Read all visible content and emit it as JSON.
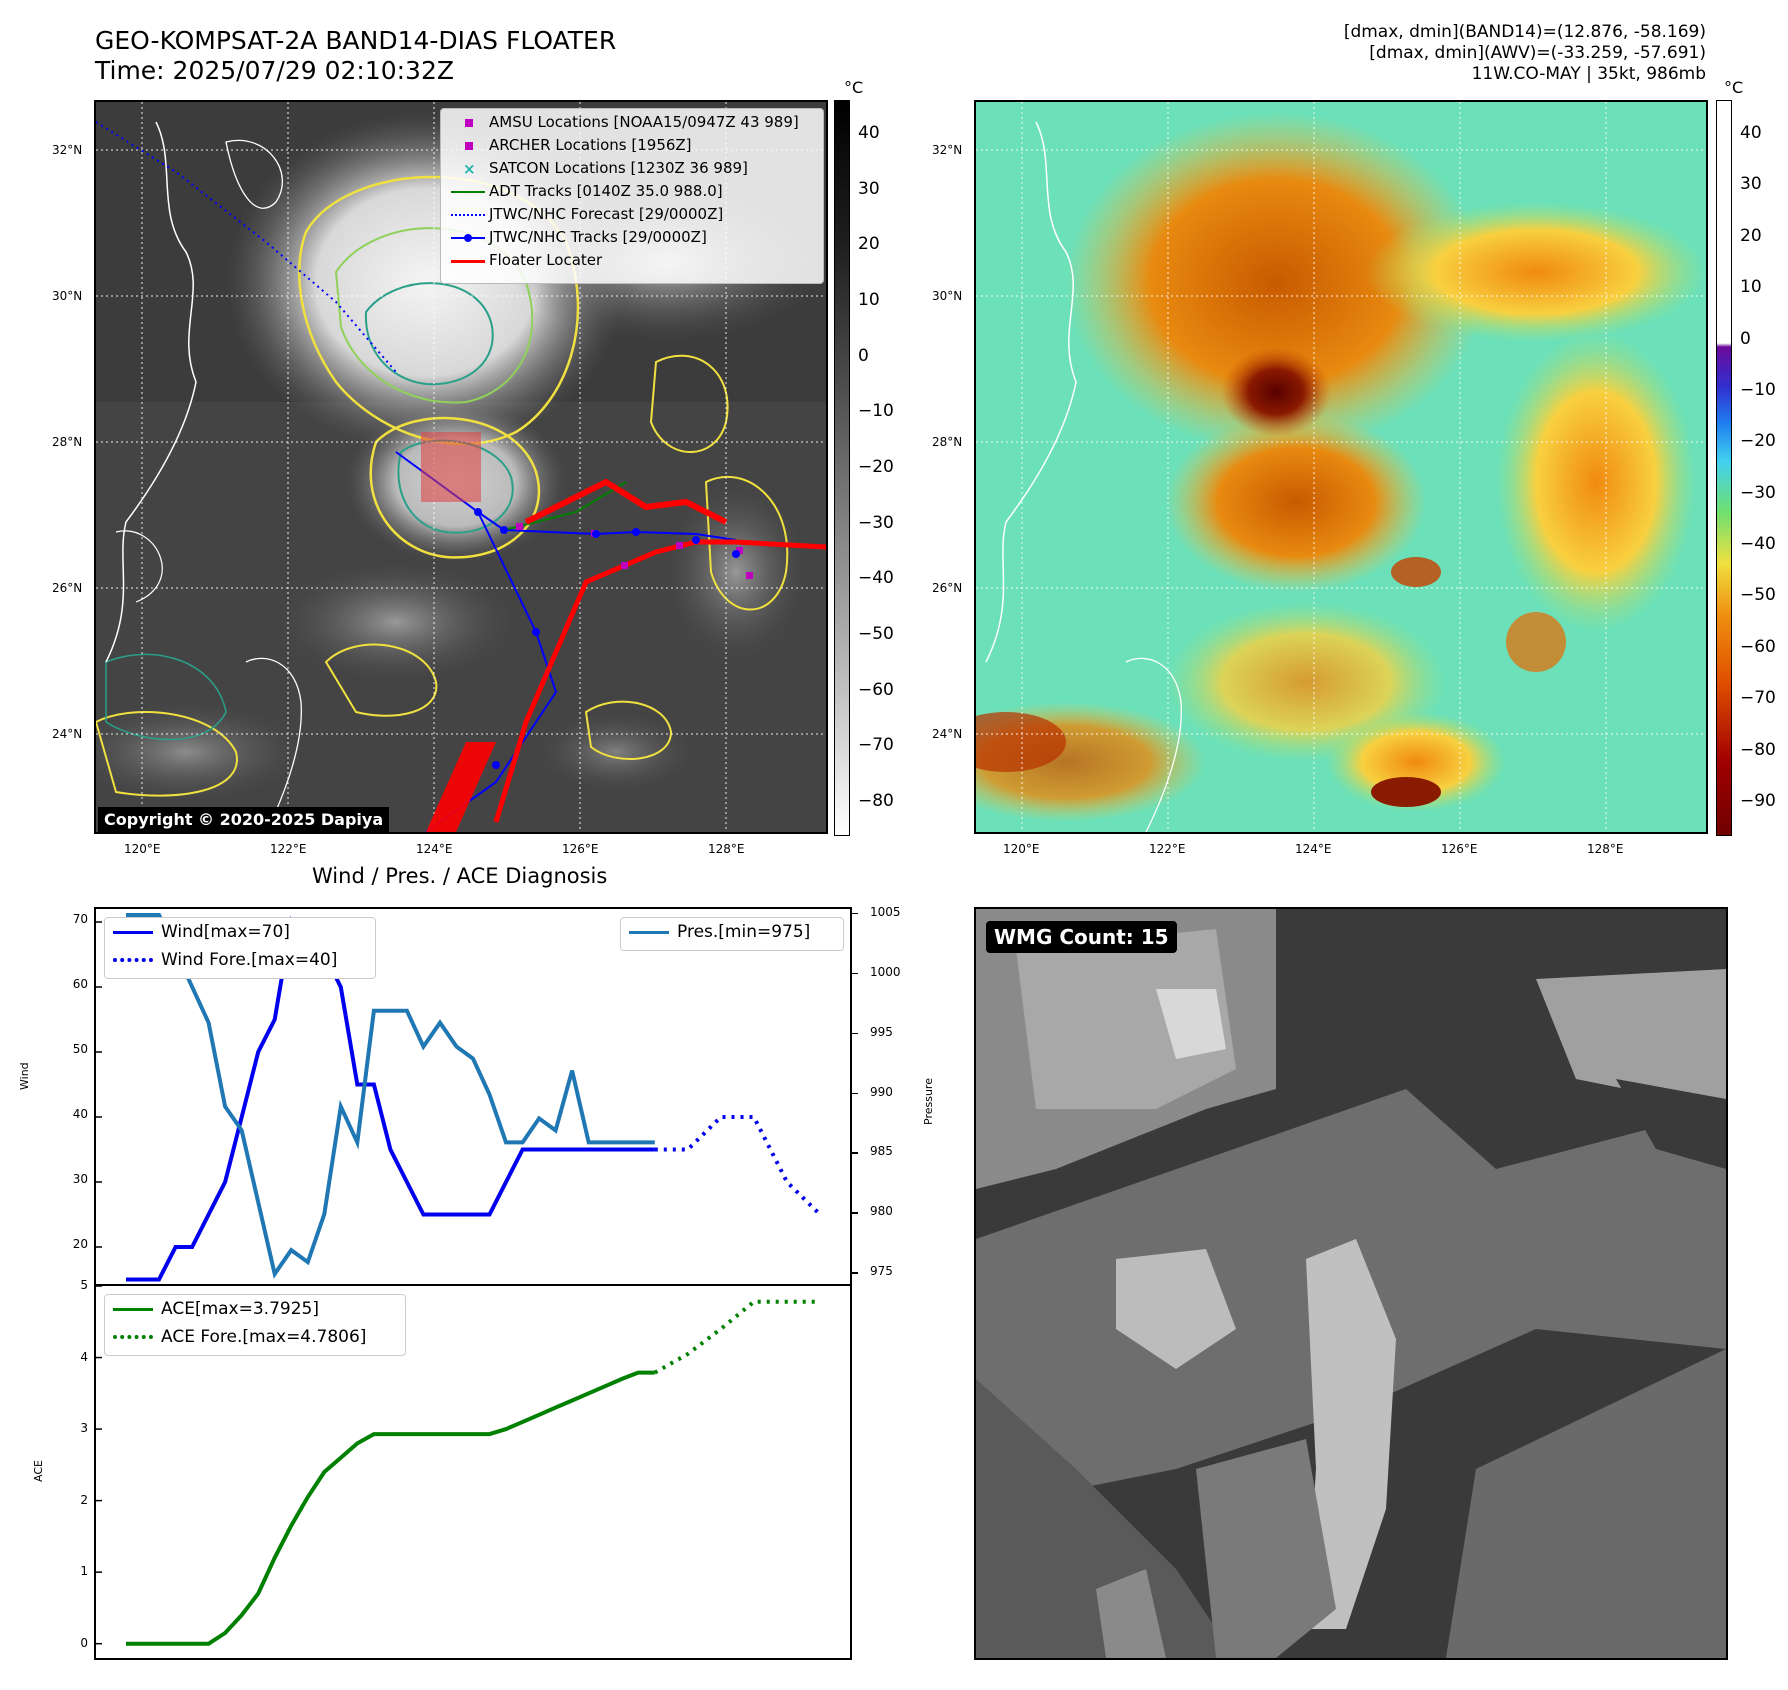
{
  "header": {
    "title_line1": "GEO-KOMPSAT-2A BAND14-DIAS FLOATER",
    "title_line2": "Time: 2025/07/29 02:10:32Z",
    "info_line1": "[dmax, dmin](BAND14)=(12.876, -58.169)",
    "info_line2": "[dmax, dmin](AWV)=(-33.259, -57.691)",
    "info_line3": "11W.CO-MAY | 35kt, 986mb"
  },
  "ir_panel": {
    "lat_ticks": [
      "32°N",
      "30°N",
      "28°N",
      "26°N",
      "24°N"
    ],
    "lon_ticks": [
      "120°E",
      "122°E",
      "124°E",
      "126°E",
      "128°E"
    ],
    "legend": [
      {
        "label": "AMSU Locations [NOAA15/0947Z 43 989]",
        "color": "#c000c0",
        "symbol": "square"
      },
      {
        "label": "ARCHER Locations [1956Z]",
        "color": "#c000c0",
        "symbol": "square"
      },
      {
        "label": "SATCON Locations [1230Z 36 989]",
        "color": "#20b2aa",
        "symbol": "x"
      },
      {
        "label": "ADT Tracks [0140Z 35.0 988.0]",
        "color": "#008000",
        "symbol": "line"
      },
      {
        "label": "JTWC/NHC Forecast [29/0000Z]",
        "color": "#0000ff",
        "symbol": "dotted"
      },
      {
        "label": "JTWC/NHC Tracks [29/0000Z]",
        "color": "#0000ff",
        "symbol": "line-dot"
      },
      {
        "label": "Floater Locater",
        "color": "#ff0000",
        "symbol": "line"
      }
    ],
    "copyright": "Copyright © 2020-2025 Dapiya",
    "colorbar_unit": "°C",
    "colorbar_ticks": [
      "40",
      "30",
      "20",
      "10",
      "0",
      "−10",
      "−20",
      "−30",
      "−40",
      "−50",
      "−60",
      "−70",
      "−80"
    ]
  },
  "color_panel": {
    "lat_ticks": [
      "32°N",
      "30°N",
      "28°N",
      "26°N",
      "24°N"
    ],
    "lon_ticks": [
      "120°E",
      "122°E",
      "124°E",
      "126°E",
      "128°E"
    ],
    "colorbar_unit": "°C",
    "colorbar_ticks": [
      "40",
      "30",
      "20",
      "10",
      "0",
      "−10",
      "−20",
      "−30",
      "−40",
      "−50",
      "−60",
      "−70",
      "−80",
      "−90"
    ]
  },
  "diagnosis_title": "Wind / Pres. / ACE Diagnosis",
  "wmg_label": "WMG Count: 15",
  "colors": {
    "wind": "#0000ee",
    "pressure": "#1f77b4",
    "ace": "#008000",
    "track_red": "#ff0000"
  },
  "chart_data": [
    {
      "type": "line",
      "ylabel": "Wind",
      "y2label": "Pressure",
      "ylim": [
        14,
        72
      ],
      "y2lim": [
        974,
        1005.5
      ],
      "yticks": [
        20,
        30,
        40,
        50,
        60,
        70
      ],
      "y2ticks": [
        975,
        980,
        985,
        990,
        995,
        1000,
        1005
      ],
      "x_range": [
        0,
        42
      ],
      "series": [
        {
          "name": "Wind[max=70]",
          "axis": "left",
          "style": "solid",
          "x": [
            0,
            2,
            3,
            4,
            5,
            6,
            7,
            8,
            9,
            10,
            11,
            12,
            13,
            14,
            15,
            16,
            17,
            18,
            19,
            20,
            21,
            22,
            23,
            24,
            25,
            26,
            27,
            28,
            29,
            30,
            31,
            32
          ],
          "values": [
            15,
            15,
            20,
            20,
            25,
            30,
            40,
            50,
            55,
            70,
            65,
            65,
            60,
            45,
            45,
            35,
            30,
            25,
            25,
            25,
            25,
            25,
            30,
            35,
            35,
            35,
            35,
            35,
            35,
            35,
            35,
            35
          ]
        },
        {
          "name": "Wind Fore.[max=40]",
          "axis": "left",
          "style": "dotted",
          "x": [
            32,
            34,
            36,
            38,
            40,
            42
          ],
          "values": [
            35,
            35,
            40,
            40,
            30,
            25
          ]
        },
        {
          "name": "Pres.[min=975]",
          "axis": "right",
          "style": "solid",
          "x": [
            0,
            2,
            3,
            4,
            5,
            6,
            7,
            8,
            9,
            10,
            11,
            12,
            13,
            14,
            15,
            16,
            17,
            18,
            19,
            20,
            21,
            22,
            23,
            24,
            25,
            26,
            27,
            28,
            29,
            30,
            31,
            32
          ],
          "values": [
            1005,
            1005,
            1002,
            999,
            996,
            989,
            987,
            981,
            975,
            977,
            976,
            980,
            989,
            986,
            997,
            997,
            997,
            994,
            996,
            994,
            993,
            990,
            986,
            986,
            988,
            987,
            992,
            986,
            986,
            986,
            986,
            986
          ]
        }
      ]
    },
    {
      "type": "line",
      "ylabel": "ACE",
      "ylim": [
        -0.2,
        5
      ],
      "yticks": [
        0,
        1,
        2,
        3,
        4,
        5
      ],
      "x_range": [
        0,
        42
      ],
      "series": [
        {
          "name": "ACE[max=3.7925]",
          "style": "solid",
          "x": [
            0,
            1,
            2,
            3,
            4,
            5,
            6,
            7,
            8,
            9,
            10,
            11,
            12,
            13,
            14,
            15,
            16,
            17,
            18,
            19,
            20,
            21,
            22,
            23,
            24,
            25,
            26,
            27,
            28,
            29,
            30,
            31,
            32
          ],
          "values": [
            0,
            0,
            0,
            0,
            0,
            0,
            0.15,
            0.4,
            0.7,
            1.2,
            1.65,
            2.05,
            2.4,
            2.6,
            2.8,
            2.93,
            2.93,
            2.93,
            2.93,
            2.93,
            2.93,
            2.93,
            2.93,
            3.0,
            3.1,
            3.2,
            3.3,
            3.4,
            3.5,
            3.6,
            3.7,
            3.79,
            3.79
          ]
        },
        {
          "name": "ACE Fore.[max=4.7806]",
          "style": "dotted",
          "x": [
            32,
            34,
            36,
            38,
            40,
            42
          ],
          "values": [
            3.79,
            4.05,
            4.4,
            4.78,
            4.78,
            4.78
          ]
        }
      ]
    }
  ]
}
